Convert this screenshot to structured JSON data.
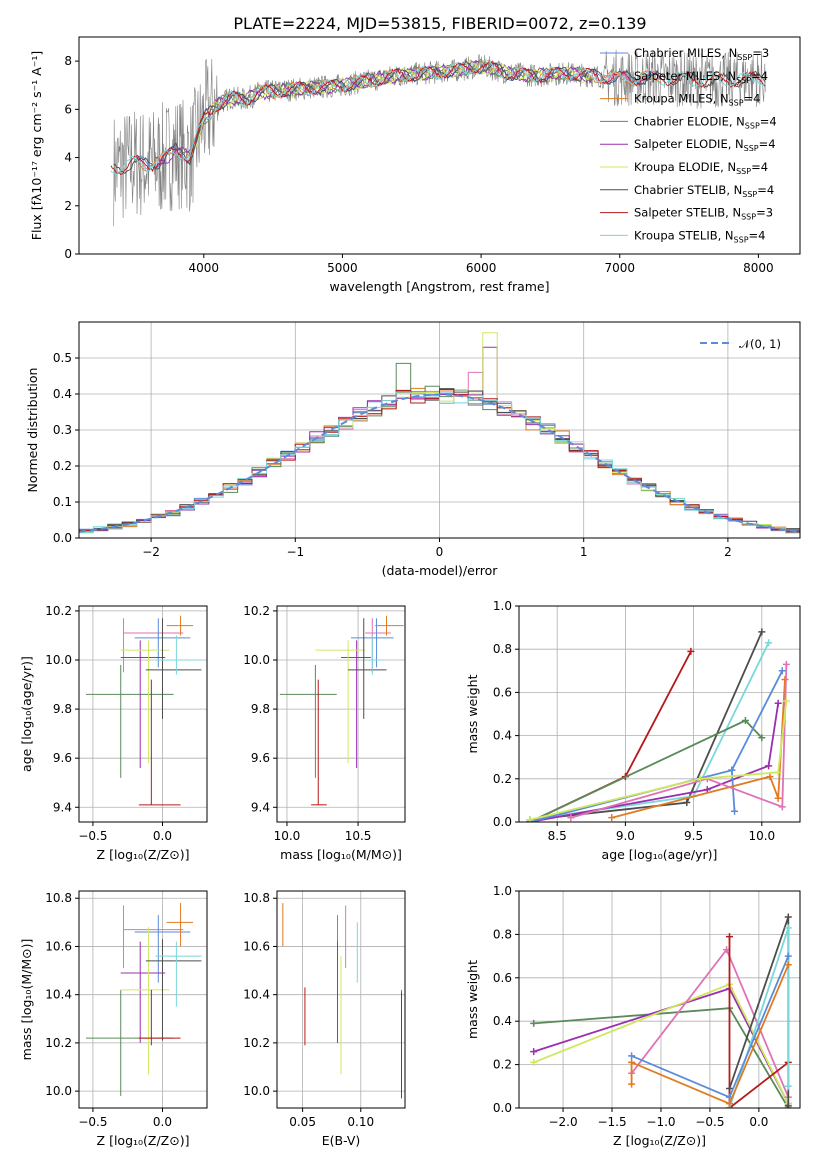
{
  "colors": {
    "chabrier_miles": "#5b8bd9",
    "salpeter_miles": "#df72b7",
    "kroupa_miles": "#e07b22",
    "chabrier_elodie": "#5a8a5a",
    "salpeter_elodie": "#9a2fb0",
    "kroupa_elodie": "#cfe860",
    "chabrier_stelib": "#4d4d4d",
    "salpeter_stelib": "#b71a1a",
    "kroupa_stelib": "#78d8dc",
    "spectrum": "#808080",
    "normal": "#5b8bd9"
  },
  "chart_data": [
    {
      "id": "spectrum",
      "type": "line",
      "title": "PLATE=2224, MJD=53815, FIBERID=0072, z=0.139",
      "xlabel": "wavelength [Angstrom, rest frame]",
      "ylabel": "Flux [fλ10⁻¹⁷ erg cm⁻² s⁻¹ A⁻¹]",
      "xlim": [
        3100,
        8300
      ],
      "ylim": [
        0,
        9
      ],
      "xticks": [
        4000,
        5000,
        6000,
        7000,
        8000
      ],
      "yticks": [
        0,
        2,
        4,
        6,
        8
      ],
      "continuum": {
        "x": [
          3300,
          3400,
          3500,
          3600,
          3700,
          3800,
          3900,
          4000,
          4100,
          4200,
          4300,
          4400,
          4600,
          4800,
          5000,
          5200,
          5400,
          5600,
          5800,
          6000,
          6200,
          6400,
          6600,
          6800,
          7000,
          7200,
          7400,
          7600,
          7800,
          8000,
          8100
        ],
        "y": [
          3.5,
          3.6,
          3.8,
          3.7,
          3.9,
          4.3,
          4.0,
          5.6,
          6.2,
          6.5,
          6.4,
          6.7,
          6.8,
          6.9,
          7.0,
          7.2,
          7.4,
          7.5,
          7.6,
          7.8,
          7.5,
          7.4,
          7.5,
          7.4,
          7.3,
          7.3,
          7.3,
          7.2,
          7.2,
          7.3,
          7.2
        ]
      },
      "legend": [
        {
          "label": "Chabrier MILES, N",
          "sub": "SSP",
          "suffix": "=3",
          "color": "#5b8bd9"
        },
        {
          "label": "Salpeter MILES, N",
          "sub": "SSP",
          "suffix": "=4",
          "color": "#df72b7"
        },
        {
          "label": "Kroupa MILES, N",
          "sub": "SSP",
          "suffix": "=4",
          "color": "#e07b22"
        },
        {
          "label": "Chabrier ELODIE, N",
          "sub": "SSP",
          "suffix": "=4",
          "color": "#5a8a5a"
        },
        {
          "label": "Salpeter ELODIE, N",
          "sub": "SSP",
          "suffix": "=4",
          "color": "#9a2fb0"
        },
        {
          "label": "Kroupa ELODIE, N",
          "sub": "SSP",
          "suffix": "=4",
          "color": "#cfe860"
        },
        {
          "label": "Chabrier STELIB, N",
          "sub": "SSP",
          "suffix": "=4",
          "color": "#4d4d4d"
        },
        {
          "label": "Salpeter STELIB, N",
          "sub": "SSP",
          "suffix": "=3",
          "color": "#b71a1a"
        },
        {
          "label": "Kroupa STELIB, N",
          "sub": "SSP",
          "suffix": "=4",
          "color": "#78d8dc"
        }
      ]
    },
    {
      "id": "residuals",
      "type": "line",
      "xlabel": "(data-model)/error",
      "ylabel": "Normed distribution",
      "xlim": [
        -2.5,
        2.5
      ],
      "ylim": [
        0,
        0.6
      ],
      "xticks": [
        -2,
        -1,
        0,
        1,
        2
      ],
      "xticklabels": [
        "−2",
        "−1",
        "0",
        "1",
        "2"
      ],
      "yticks": [
        0.0,
        0.1,
        0.2,
        0.3,
        0.4,
        0.5
      ],
      "yticklabels": [
        "0.0",
        "0.1",
        "0.2",
        "0.3",
        "0.4",
        "0.5"
      ],
      "legend": "𝒩(0, 1)",
      "bin_width": 0.1,
      "peaks": [
        {
          "x": -0.25,
          "y": 0.485,
          "color": "#5a8a5a"
        },
        {
          "x": 0.35,
          "y": 0.57,
          "color": "#cfe860"
        },
        {
          "x": 0.35,
          "y": 0.53,
          "color": "#9a2fb0"
        },
        {
          "x": 0.25,
          "y": 0.46,
          "color": "#df72b7"
        }
      ]
    },
    {
      "id": "age-vs-z",
      "type": "scatter",
      "xlabel": "Z [log₁₀(Z/Z⊙)]",
      "ylabel": "age  [log₁₀(age/yr)]",
      "xlim": [
        -0.6,
        0.32
      ],
      "ylim": [
        9.34,
        10.22
      ],
      "xticks": [
        -0.5,
        0.0
      ],
      "xticklabels": [
        "−0.5",
        "0.0"
      ],
      "yticks": [
        9.4,
        9.6,
        9.8,
        10.0,
        10.2
      ],
      "yticklabels": [
        "9.4",
        "9.6",
        "9.8",
        "10.0",
        "10.2"
      ]
    },
    {
      "id": "age-vs-mass",
      "type": "scatter",
      "xlabel": "mass [log₁₀(M/M⊙)]",
      "xlim": [
        9.93,
        10.83
      ],
      "ylim": [
        9.34,
        10.22
      ],
      "xticks": [
        10.0,
        10.5
      ],
      "xticklabels": [
        "10.0",
        "10.5"
      ],
      "yticks": [
        9.4,
        9.6,
        9.8,
        10.0,
        10.2
      ],
      "yticklabels": [
        "9.4",
        "9.6",
        "9.8",
        "10.0",
        "10.2"
      ]
    },
    {
      "id": "weight-vs-age",
      "type": "line",
      "xlabel": "age  [log₁₀(age/yr)]",
      "ylabel": "mass weight",
      "xlim": [
        8.22,
        10.28
      ],
      "ylim": [
        0,
        1
      ],
      "xticks": [
        8.5,
        9.0,
        9.5,
        10.0
      ],
      "xticklabels": [
        "8.5",
        "9.0",
        "9.5",
        "10.0"
      ],
      "yticks": [
        0,
        0.2,
        0.4,
        0.6,
        0.8,
        1.0
      ],
      "yticklabels": [
        "0.0",
        "0.2",
        "0.4",
        "0.6",
        "0.8",
        "1.0"
      ],
      "series": [
        {
          "color": "#b71a1a",
          "x": [
            8.3,
            9.0,
            9.48
          ],
          "y": [
            0.0,
            0.21,
            0.79
          ]
        },
        {
          "color": "#4d4d4d",
          "x": [
            8.3,
            9.45,
            10.0
          ],
          "y": [
            0.01,
            0.09,
            0.88
          ]
        },
        {
          "color": "#78d8dc",
          "x": [
            8.3,
            9.5,
            10.05
          ],
          "y": [
            0.01,
            0.12,
            0.83
          ]
        },
        {
          "color": "#5a8a5a",
          "x": [
            8.3,
            9.88,
            10.0
          ],
          "y": [
            0.0,
            0.47,
            0.39
          ]
        },
        {
          "color": "#9a2fb0",
          "x": [
            8.3,
            9.6,
            10.05,
            10.12
          ],
          "y": [
            0.0,
            0.15,
            0.26,
            0.55
          ]
        },
        {
          "color": "#5b8bd9",
          "x": [
            8.3,
            9.78,
            10.15
          ],
          "y": [
            0.0,
            0.24,
            0.7
          ]
        },
        {
          "color": "#5b8bd9",
          "x": [
            9.78,
            9.8
          ],
          "y": [
            0.24,
            0.05
          ]
        },
        {
          "color": "#e07b22",
          "x": [
            8.9,
            10.06,
            10.12,
            10.17
          ],
          "y": [
            0.02,
            0.21,
            0.11,
            0.66
          ]
        },
        {
          "color": "#df72b7",
          "x": [
            8.6,
            9.6,
            10.15,
            10.18
          ],
          "y": [
            0.02,
            0.2,
            0.07,
            0.73
          ]
        },
        {
          "color": "#cfe860",
          "x": [
            8.3,
            9.55,
            10.12,
            10.18
          ],
          "y": [
            0.01,
            0.2,
            0.23,
            0.56
          ]
        }
      ]
    },
    {
      "id": "mass-vs-z",
      "type": "scatter",
      "xlabel": "Z [log₁₀(Z/Z⊙)]",
      "ylabel": "mass [log₁₀(M/M⊙)]",
      "xlim": [
        -0.6,
        0.32
      ],
      "ylim": [
        9.93,
        10.83
      ],
      "xticks": [
        -0.5,
        0.0
      ],
      "xticklabels": [
        "−0.5",
        "0.0"
      ],
      "yticks": [
        10.0,
        10.2,
        10.4,
        10.6,
        10.8
      ],
      "yticklabels": [
        "10.0",
        "10.2",
        "10.4",
        "10.6",
        "10.8"
      ]
    },
    {
      "id": "mass-vs-ebv",
      "type": "scatter",
      "xlabel": "E(B-V)",
      "xlim": [
        0.028,
        0.138
      ],
      "ylim": [
        9.93,
        10.83
      ],
      "xticks": [
        0.05,
        0.1
      ],
      "xticklabels": [
        "0.05",
        "0.10"
      ],
      "yticks": [
        10.0,
        10.2,
        10.4,
        10.6,
        10.8
      ],
      "yticklabels": [
        "10.0",
        "10.2",
        "10.4",
        "10.6",
        "10.8"
      ]
    },
    {
      "id": "weight-vs-z",
      "type": "line",
      "xlabel": "Z [log₁₀(Z/Z⊙)]",
      "ylabel": "mass weight",
      "xlim": [
        -2.45,
        0.42
      ],
      "ylim": [
        0,
        1
      ],
      "xticks": [
        -2.0,
        -1.5,
        -1.0,
        -0.5,
        0.0
      ],
      "xticklabels": [
        "−2.0",
        "−1.5",
        "−1.0",
        "−0.5",
        "0.0"
      ],
      "yticks": [
        0,
        0.2,
        0.4,
        0.6,
        0.8,
        1.0
      ],
      "yticklabels": [
        "0.0",
        "0.2",
        "0.4",
        "0.6",
        "0.8",
        "1.0"
      ],
      "series": [
        {
          "color": "#5a8a5a",
          "x": [
            -2.3,
            -0.3,
            0.3
          ],
          "y": [
            0.39,
            0.46,
            0.0
          ]
        },
        {
          "color": "#9a2fb0",
          "x": [
            -2.3,
            -0.3,
            0.3
          ],
          "y": [
            0.26,
            0.55,
            0.02
          ]
        },
        {
          "color": "#cfe860",
          "x": [
            -2.3,
            -0.3,
            0.3
          ],
          "y": [
            0.21,
            0.57,
            0.02
          ]
        },
        {
          "color": "#df72b7",
          "x": [
            -1.3,
            -0.33,
            0.3
          ],
          "y": [
            0.16,
            0.73,
            0.05
          ]
        },
        {
          "color": "#b71a1a",
          "x": [
            -0.3,
            -0.3,
            0.3
          ],
          "y": [
            0.79,
            0.0,
            0.21
          ]
        },
        {
          "color": "#4d4d4d",
          "x": [
            -0.3,
            0.3,
            0.3
          ],
          "y": [
            0.09,
            0.88,
            0.01
          ]
        },
        {
          "color": "#78d8dc",
          "x": [
            -0.3,
            0.3,
            0.3
          ],
          "y": [
            0.0,
            0.83,
            0.1
          ]
        },
        {
          "color": "#5b8bd9",
          "x": [
            -1.3,
            -0.3,
            0.3
          ],
          "y": [
            0.24,
            0.05,
            0.7
          ]
        },
        {
          "color": "#e07b22",
          "x": [
            -1.3,
            -1.3,
            -0.3,
            0.3
          ],
          "y": [
            0.11,
            0.21,
            0.02,
            0.66
          ]
        }
      ]
    }
  ],
  "error_points": [
    {
      "color": "#df72b7",
      "Z": [
        -0.28,
        -0.28,
        0.15
      ],
      "age": [
        10.11,
        9.95,
        10.17
      ],
      "mass": [
        10.67,
        10.51,
        10.77
      ],
      "massx": [
        10.6,
        10.55,
        10.73
      ],
      "ebv": 0.087,
      "ebv_e": [
        10.51,
        10.77
      ]
    },
    {
      "color": "#5b8bd9",
      "Z": [
        -0.03,
        -0.2,
        0.2
      ],
      "age": [
        10.09,
        9.97,
        10.17
      ],
      "mass": [
        10.66,
        10.45,
        10.73
      ],
      "massx": [
        10.63,
        10.45,
        10.75
      ],
      "ebv": 0.08,
      "ebv_e": [
        10.6,
        10.73
      ]
    },
    {
      "color": "#e07b22",
      "Z": [
        0.13,
        0.03,
        0.22
      ],
      "age": [
        10.14,
        10.1,
        10.18
      ],
      "mass": [
        10.7,
        10.6,
        10.78
      ],
      "massx": [
        10.7,
        10.62,
        10.82
      ],
      "ebv": 0.033,
      "ebv_e": [
        10.6,
        10.78
      ]
    },
    {
      "color": "#5a8a5a",
      "Z": [
        -0.3,
        -0.55,
        0.08
      ],
      "age": [
        9.86,
        9.52,
        9.98
      ],
      "mass": [
        10.22,
        9.98,
        10.42
      ],
      "massx": [
        10.2,
        9.95,
        10.35
      ],
      "ebv": 0.135,
      "ebv_e": [
        9.98,
        10.42
      ]
    },
    {
      "color": "#9a2fb0",
      "Z": [
        -0.16,
        -0.3,
        0.02
      ],
      "age": [
        10.01,
        9.56,
        10.08
      ],
      "mass": [
        10.49,
        10.2,
        10.62
      ],
      "massx": [
        10.49,
        10.38,
        10.59
      ],
      "ebv": 0.08,
      "ebv_e": [
        10.2,
        10.62
      ]
    },
    {
      "color": "#cfe860",
      "Z": [
        -0.1,
        -0.3,
        0.05
      ],
      "age": [
        10.04,
        9.58,
        10.08
      ],
      "mass": [
        10.42,
        10.07,
        10.68
      ],
      "massx": [
        10.43,
        10.2,
        10.55
      ],
      "ebv": 0.083,
      "ebv_e": [
        10.07,
        10.56
      ]
    },
    {
      "color": "#4d4d4d",
      "Z": [
        0.0,
        -0.12,
        0.28
      ],
      "age": [
        9.96,
        9.76,
        10.17
      ],
      "mass": [
        10.54,
        10.21,
        10.63
      ],
      "massx": [
        10.54,
        10.43,
        10.7
      ],
      "ebv": 0.135,
      "ebv_e": [
        9.97,
        10.41
      ]
    },
    {
      "color": "#b71a1a",
      "Z": [
        -0.08,
        -0.17,
        0.13
      ],
      "age": [
        9.41,
        9.41,
        9.92
      ],
      "mass": [
        10.22,
        10.19,
        10.42
      ],
      "massx": [
        10.22,
        10.17,
        10.28
      ],
      "ebv": 0.052,
      "ebv_e": [
        10.19,
        10.43
      ]
    },
    {
      "color": "#78d8dc",
      "Z": [
        0.1,
        -0.05,
        0.28
      ],
      "age": [
        10.0,
        9.94,
        10.1
      ],
      "mass": [
        10.56,
        10.35,
        10.62
      ],
      "massx": [
        10.6,
        10.55,
        10.68
      ],
      "ebv": 0.097,
      "ebv_e": [
        10.45,
        10.7
      ]
    }
  ]
}
